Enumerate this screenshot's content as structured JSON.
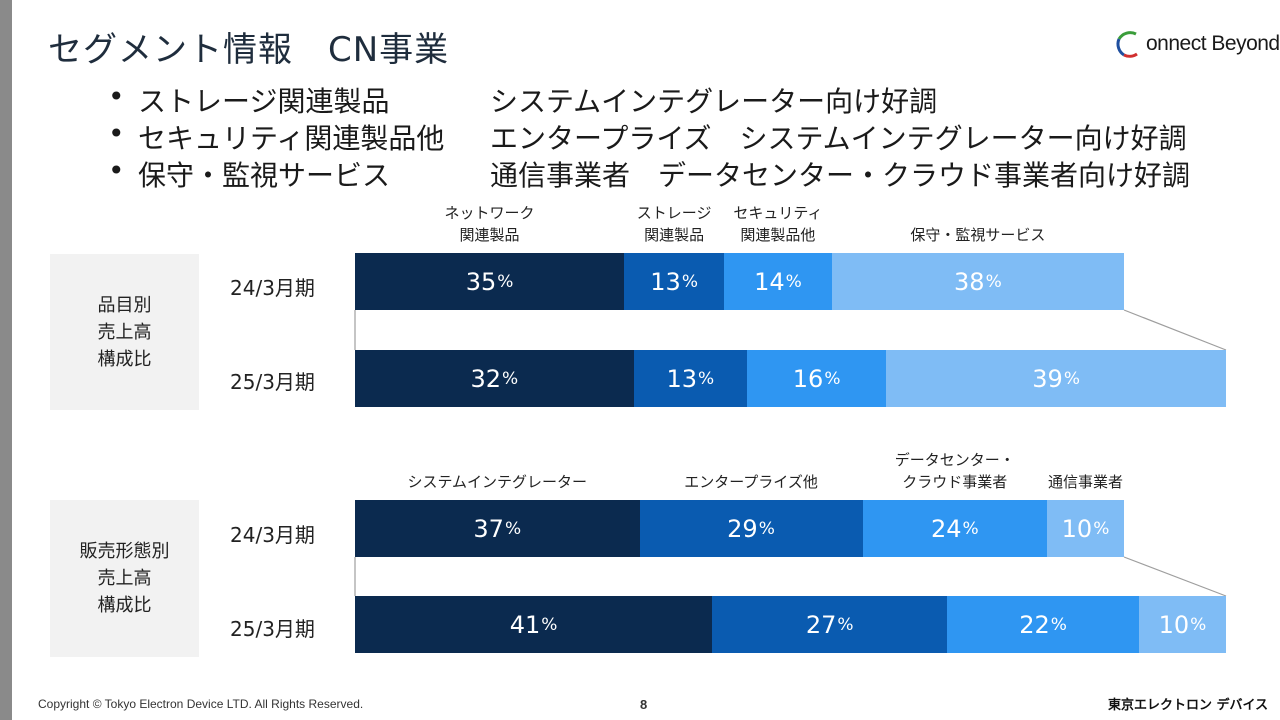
{
  "title": "セグメント情報　CN事業",
  "logo": {
    "text": "onnect Beyond"
  },
  "bullets": [
    {
      "marker": "•",
      "label": "ストレージ関連製品",
      "desc": "システムインテグレーター向け好調"
    },
    {
      "marker": "•",
      "label": "セキュリティ関連製品他",
      "desc": "エンタープライズ　システムインテグレーター向け好調"
    },
    {
      "marker": "•",
      "label": "保守・監視サービス",
      "desc": "通信事業者　データセンター・クラウド事業者向け好調"
    }
  ],
  "product": {
    "box_lines": [
      "品目別",
      "売上高",
      "構成比"
    ],
    "categories": [
      {
        "lines": [
          "ネットワーク",
          "関連製品"
        ]
      },
      {
        "lines": [
          "ストレージ",
          "関連製品"
        ]
      },
      {
        "lines": [
          "セキュリティ",
          "関連製品他"
        ]
      },
      {
        "lines": [
          "保守・監視サービス"
        ]
      }
    ],
    "rows": [
      {
        "period": "24/3月期",
        "values": [
          "35",
          "13",
          "14",
          "38"
        ]
      },
      {
        "period": "25/3月期",
        "values": [
          "32",
          "13",
          "16",
          "39"
        ]
      }
    ]
  },
  "sales": {
    "box_lines": [
      "販売形態別",
      "売上高",
      "構成比"
    ],
    "categories": [
      {
        "lines": [
          "システムインテグレーター"
        ]
      },
      {
        "lines": [
          "エンタープライズ他"
        ]
      },
      {
        "lines": [
          "データセンター・",
          "クラウド事業者"
        ]
      },
      {
        "lines": [
          "通信事業者"
        ]
      }
    ],
    "rows": [
      {
        "period": "24/3月期",
        "values": [
          "37",
          "29",
          "24",
          "10"
        ]
      },
      {
        "period": "25/3月期",
        "values": [
          "41",
          "27",
          "22",
          "10"
        ]
      }
    ]
  },
  "pct_symbol": "%",
  "colors": [
    "#0b2a4f",
    "#0a5bb0",
    "#2f96f2",
    "#7fbcf5"
  ],
  "chart_data": [
    {
      "type": "bar",
      "stacked": true,
      "categories": [
        "24/3月期",
        "25/3月期"
      ],
      "series": [
        {
          "name": "ネットワーク関連製品",
          "values": [
            35,
            32
          ]
        },
        {
          "name": "ストレージ関連製品",
          "values": [
            13,
            13
          ]
        },
        {
          "name": "セキュリティ関連製品他",
          "values": [
            14,
            16
          ]
        },
        {
          "name": "保守・監視サービス",
          "values": [
            38,
            39
          ]
        }
      ]
    },
    {
      "type": "bar",
      "stacked": true,
      "categories": [
        "24/3月期",
        "25/3月期"
      ],
      "series": [
        {
          "name": "システムインテグレーター",
          "values": [
            37,
            41
          ]
        },
        {
          "name": "エンタープライズ他",
          "values": [
            29,
            27
          ]
        },
        {
          "name": "データセンター・クラウド事業者",
          "values": [
            24,
            22
          ]
        },
        {
          "name": "通信事業者",
          "values": [
            10,
            10
          ]
        }
      ]
    }
  ],
  "footer": {
    "copyright": "Copyright © Tokyo Electron Device LTD. All Rights Reserved.",
    "page": "8",
    "brand": "東京エレクトロン デバイス"
  }
}
